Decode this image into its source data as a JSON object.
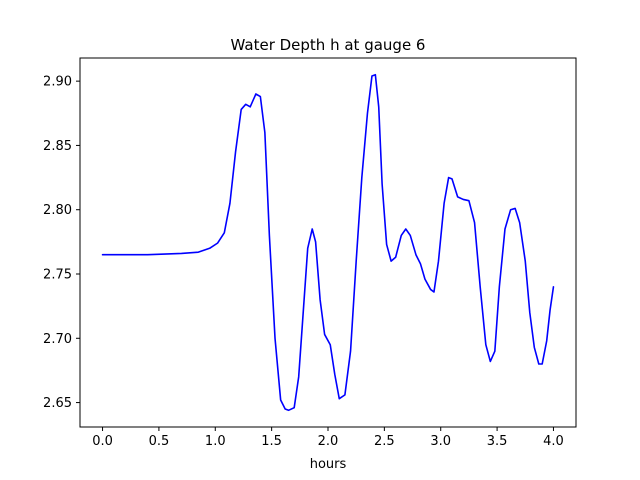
{
  "chart_data": {
    "type": "line",
    "title": "Water Depth h at gauge 6",
    "xlabel": "hours",
    "ylabel": "",
    "xlim": [
      -0.2,
      4.2
    ],
    "ylim": [
      2.631,
      2.918
    ],
    "xticks": [
      0.0,
      0.5,
      1.0,
      1.5,
      2.0,
      2.5,
      3.0,
      3.5,
      4.0
    ],
    "xtick_labels": [
      "0.0",
      "0.5",
      "1.0",
      "1.5",
      "2.0",
      "2.5",
      "3.0",
      "3.5",
      "4.0"
    ],
    "yticks": [
      2.65,
      2.7,
      2.75,
      2.8,
      2.85,
      2.9
    ],
    "ytick_labels": [
      "2.65",
      "2.70",
      "2.75",
      "2.80",
      "2.85",
      "2.90"
    ],
    "grid": false,
    "series": [
      {
        "color": "#0000ff",
        "points": [
          [
            0.0,
            2.765
          ],
          [
            0.2,
            2.765
          ],
          [
            0.4,
            2.765
          ],
          [
            0.55,
            2.7655
          ],
          [
            0.7,
            2.766
          ],
          [
            0.85,
            2.767
          ],
          [
            0.95,
            2.77
          ],
          [
            1.02,
            2.774
          ],
          [
            1.08,
            2.782
          ],
          [
            1.13,
            2.805
          ],
          [
            1.18,
            2.845
          ],
          [
            1.23,
            2.878
          ],
          [
            1.27,
            2.882
          ],
          [
            1.31,
            2.88
          ],
          [
            1.36,
            2.89
          ],
          [
            1.4,
            2.888
          ],
          [
            1.44,
            2.86
          ],
          [
            1.48,
            2.78
          ],
          [
            1.53,
            2.7
          ],
          [
            1.58,
            2.652
          ],
          [
            1.62,
            2.645
          ],
          [
            1.65,
            2.644
          ],
          [
            1.7,
            2.646
          ],
          [
            1.74,
            2.67
          ],
          [
            1.78,
            2.72
          ],
          [
            1.82,
            2.77
          ],
          [
            1.86,
            2.785
          ],
          [
            1.89,
            2.775
          ],
          [
            1.93,
            2.73
          ],
          [
            1.97,
            2.703
          ],
          [
            2.02,
            2.695
          ],
          [
            2.06,
            2.672
          ],
          [
            2.1,
            2.653
          ],
          [
            2.15,
            2.656
          ],
          [
            2.2,
            2.69
          ],
          [
            2.25,
            2.76
          ],
          [
            2.3,
            2.825
          ],
          [
            2.35,
            2.875
          ],
          [
            2.39,
            2.904
          ],
          [
            2.42,
            2.905
          ],
          [
            2.45,
            2.88
          ],
          [
            2.48,
            2.82
          ],
          [
            2.52,
            2.773
          ],
          [
            2.56,
            2.76
          ],
          [
            2.6,
            2.763
          ],
          [
            2.65,
            2.78
          ],
          [
            2.69,
            2.785
          ],
          [
            2.73,
            2.78
          ],
          [
            2.78,
            2.765
          ],
          [
            2.82,
            2.758
          ],
          [
            2.86,
            2.746
          ],
          [
            2.91,
            2.738
          ],
          [
            2.94,
            2.736
          ],
          [
            2.98,
            2.76
          ],
          [
            3.03,
            2.805
          ],
          [
            3.07,
            2.825
          ],
          [
            3.1,
            2.824
          ],
          [
            3.15,
            2.81
          ],
          [
            3.2,
            2.808
          ],
          [
            3.25,
            2.807
          ],
          [
            3.3,
            2.79
          ],
          [
            3.35,
            2.74
          ],
          [
            3.4,
            2.695
          ],
          [
            3.44,
            2.682
          ],
          [
            3.48,
            2.69
          ],
          [
            3.52,
            2.74
          ],
          [
            3.57,
            2.785
          ],
          [
            3.62,
            2.8
          ],
          [
            3.66,
            2.801
          ],
          [
            3.7,
            2.79
          ],
          [
            3.75,
            2.76
          ],
          [
            3.79,
            2.72
          ],
          [
            3.83,
            2.693
          ],
          [
            3.87,
            2.68
          ],
          [
            3.9,
            2.68
          ],
          [
            3.94,
            2.698
          ],
          [
            3.97,
            2.722
          ],
          [
            4.0,
            2.74
          ]
        ]
      }
    ]
  }
}
